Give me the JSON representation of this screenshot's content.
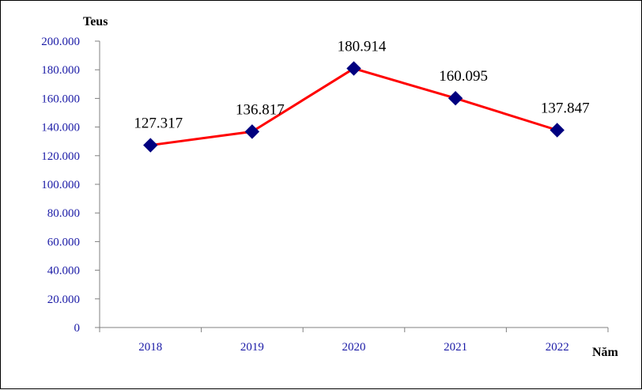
{
  "chart_data": {
    "type": "line",
    "title": "",
    "ylabel": "Teus",
    "xlabel": "Năm",
    "categories": [
      "2018",
      "2019",
      "2020",
      "2021",
      "2022"
    ],
    "series": [
      {
        "values": [
          127317,
          136817,
          180914,
          160095,
          137847
        ]
      }
    ],
    "data_labels": [
      "127.317",
      "136.817",
      "180.914",
      "160.095",
      "137.847"
    ],
    "y_ticks": [
      "0",
      "20.000",
      "40.000",
      "60.000",
      "80.000",
      "100.000",
      "120.000",
      "140.000",
      "160.000",
      "180.000",
      "200.000"
    ],
    "ylim": [
      0,
      200000
    ],
    "grid": false,
    "legend": "none",
    "colors": {
      "line": "#ff0000",
      "marker": "#00007f",
      "tick_text": "#1a1aa6",
      "axis": "#808080"
    }
  }
}
